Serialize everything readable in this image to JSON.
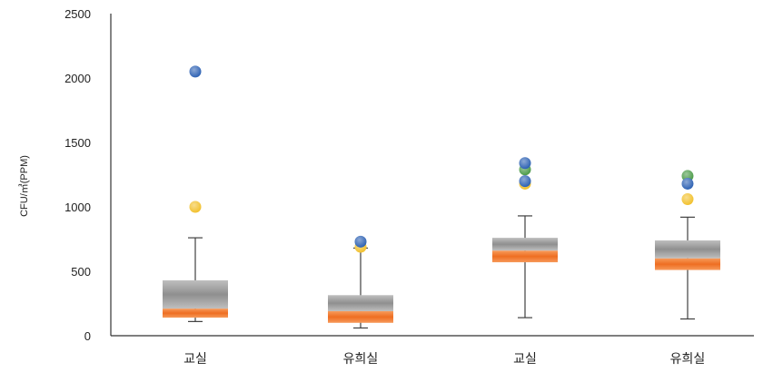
{
  "chart_data": {
    "type": "box",
    "ylabel": "CFU/㎥(PPM)",
    "ylim": [
      0,
      2500
    ],
    "yticks": [
      0,
      500,
      1000,
      1500,
      2000,
      2500
    ],
    "categories": [
      "교실",
      "유희실",
      "교실",
      "유희실"
    ],
    "boxes": [
      {
        "category": "교실",
        "whisker_low": 110,
        "q1": 140,
        "median": 210,
        "q3": 430,
        "whisker_high": 760
      },
      {
        "category": "유희실",
        "whisker_low": 60,
        "q1": 100,
        "median": 190,
        "q3": 315,
        "whisker_high": 680
      },
      {
        "category": "교실",
        "whisker_low": 140,
        "q1": 570,
        "median": 660,
        "q3": 760,
        "whisker_high": 930
      },
      {
        "category": "유희실",
        "whisker_low": 130,
        "q1": 510,
        "median": 600,
        "q3": 740,
        "whisker_high": 920
      }
    ],
    "outliers": [
      {
        "box": 0,
        "value": 2050,
        "color": "#2e62b4"
      },
      {
        "box": 0,
        "value": 1000,
        "color": "#f2c12e"
      },
      {
        "box": 1,
        "value": 690,
        "color": "#f2c12e"
      },
      {
        "box": 1,
        "value": 730,
        "color": "#2e62b4"
      },
      {
        "box": 2,
        "value": 1180,
        "color": "#f2c12e"
      },
      {
        "box": 2,
        "value": 1290,
        "color": "#4c9b49"
      },
      {
        "box": 2,
        "value": 1340,
        "color": "#2e62b4"
      },
      {
        "box": 2,
        "value": 1200,
        "color": "#2e62b4"
      },
      {
        "box": 3,
        "value": 1240,
        "color": "#4c9b49"
      },
      {
        "box": 3,
        "value": 1180,
        "color": "#2e62b4"
      },
      {
        "box": 3,
        "value": 1060,
        "color": "#f2c12e"
      }
    ],
    "colors": {
      "box_upper": "#a6a6a6",
      "median_band": "#ee7631",
      "whisker": "#404040",
      "axis": "#333333"
    }
  }
}
